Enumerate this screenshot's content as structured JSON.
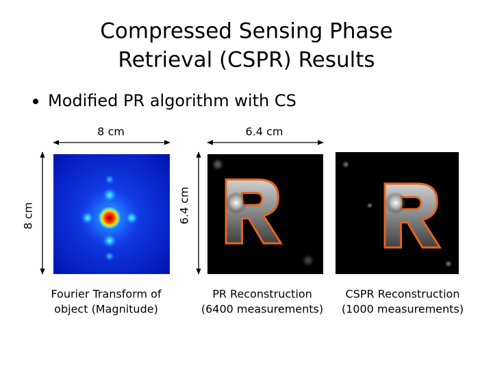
{
  "title": [
    "Compressed Sensing Phase",
    "Retrieval (CSPR) Results"
  ],
  "bullet": "Modified PR algorithm with CS",
  "dimensions": {
    "fourier_width": "8 cm",
    "fourier_height": "8 cm",
    "recon_width": "6.4 cm",
    "recon_height": "6.4 cm"
  },
  "captions": [
    [
      "Fourier Transform of",
      "object (Magnitude)"
    ],
    [
      "PR Reconstruction",
      "(6400 measurements)"
    ],
    [
      "CSPR Reconstruction",
      "(1000 measurements)"
    ]
  ]
}
